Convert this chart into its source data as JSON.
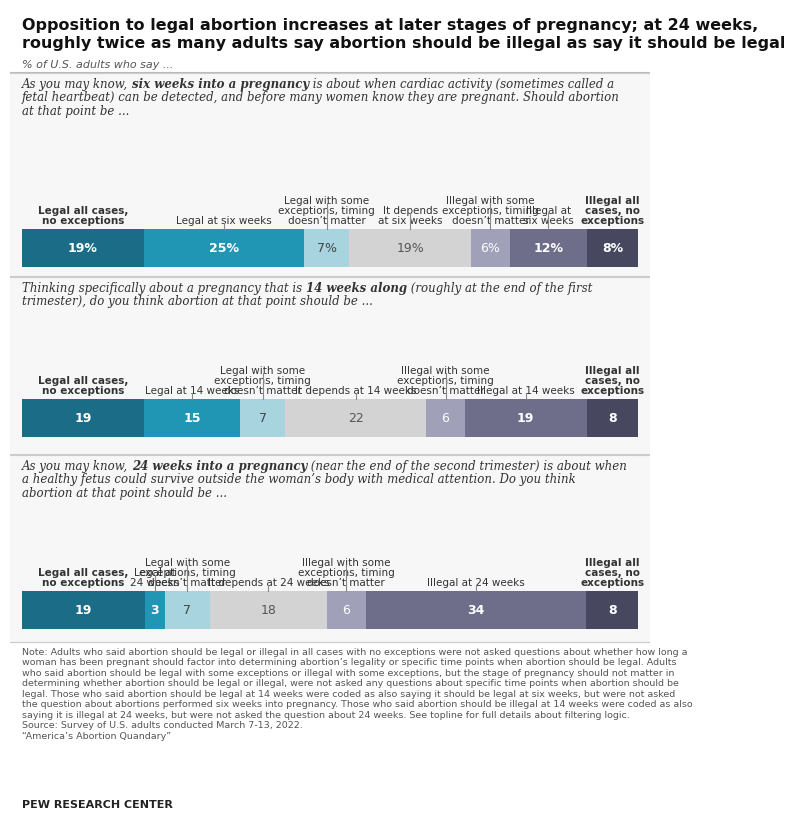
{
  "title_line1": "Opposition to legal abortion increases at later stages of pregnancy; at 24 weeks,",
  "title_line2": "roughly twice as many adults say abortion should be illegal as say it should be legal",
  "subtitle": "% of U.S. adults who say ...",
  "bars": [
    {
      "question_pre": "As you may know, ",
      "question_bold": "six weeks into a pregnancy",
      "question_post": " is about when cardiac activity (sometimes called a fetal heartbeat) can be detected, and before many women know they are pregnant. Should abortion at that point be ...",
      "segments": [
        19,
        25,
        7,
        19,
        6,
        12,
        8
      ],
      "col_labels": [
        "Legal all cases,\nno exceptions",
        "Legal at six weeks",
        "Legal with some\nexceptions, timing\ndoesn’t matter",
        "It depends\nat six weeks",
        "Illegal with some\nexceptions, timing\ndoesn’t matter",
        "Illegal at\nsix weeks",
        "Illegal all\ncases, no\nexceptions"
      ],
      "col_labels_bold": [
        true,
        false,
        false,
        false,
        false,
        false,
        true
      ],
      "show_pct": true
    },
    {
      "question_pre": "Thinking specifically about a pregnancy that is ",
      "question_bold": "14 weeks along",
      "question_post": " (roughly at the end of the first trimester), do you think abortion at that point should be ...",
      "segments": [
        19,
        15,
        7,
        22,
        6,
        19,
        8
      ],
      "col_labels": [
        "Legal all cases,\nno exceptions",
        "Legal at 14 weeks",
        "Legal with some\nexceptions, timing\ndoesn’t matter",
        "It depends at 14 weeks",
        "Illegal with some\nexceptions, timing\ndoesn’t matter",
        "Illegal at 14 weeks",
        "Illegal all\ncases, no\nexceptions"
      ],
      "col_labels_bold": [
        true,
        false,
        false,
        false,
        false,
        false,
        true
      ],
      "show_pct": false
    },
    {
      "question_pre": "As you may know, ",
      "question_bold": "24 weeks into a pregnancy",
      "question_post": " (near the end of the second trimester) is about when a healthy fetus could survive outside the woman’s body with medical attention. Do you think abortion at that point should be ...",
      "segments": [
        19,
        3,
        7,
        18,
        6,
        34,
        8
      ],
      "col_labels": [
        "Legal all cases,\nno exceptions",
        "Legal at\n24 weeks",
        "Legal with some\nexceptions, timing\ndoesn’t matter",
        "It depends at 24 weeks",
        "Illegal with some\nexceptions, timing\ndoesn’t matter",
        "Illegal at 24 weeks",
        "Illegal all\ncases, no\nexceptions"
      ],
      "col_labels_bold": [
        true,
        false,
        false,
        false,
        false,
        false,
        true
      ],
      "show_pct": false
    }
  ],
  "colors": [
    "#1b6d87",
    "#2096b4",
    "#a8d4e0",
    "#d3d3d3",
    "#a0a0b8",
    "#6e6e8a",
    "#474760"
  ],
  "bar_text_colors": [
    "#ffffff",
    "#ffffff",
    "#444444",
    "#555555",
    "#ffffff",
    "#ffffff",
    "#ffffff"
  ],
  "bar_text_bold": [
    true,
    true,
    false,
    false,
    false,
    true,
    true
  ],
  "note_lines": [
    "Note: Adults who said abortion should be legal or illegal in all cases with no exceptions were not asked questions about whether how long a",
    "woman has been pregnant should factor into determining abortion’s legality or specific time points when abortion should be legal. Adults",
    "who said abortion should be legal with some exceptions or illegal with some exceptions, but the stage of pregnancy should not matter in",
    "determining whether abortion should be legal or illegal, were not asked any questions about specific time points when abortion should be",
    "legal. Those who said abortion should be legal at 14 weeks were coded as also saying it should be legal at six weeks, but were not asked",
    "the question about abortions performed six weeks into pregnancy. Those who said abortion should be illegal at 14 weeks were coded as also",
    "saying it is illegal at 24 weeks, but were not asked the question about 24 weeks. See topline for full details about filtering logic.",
    "Source: Survey of U.S. adults conducted March 7-13, 2022.",
    "“America’s Abortion Quandary”"
  ],
  "pew_label": "PEW RESEARCH CENTER"
}
